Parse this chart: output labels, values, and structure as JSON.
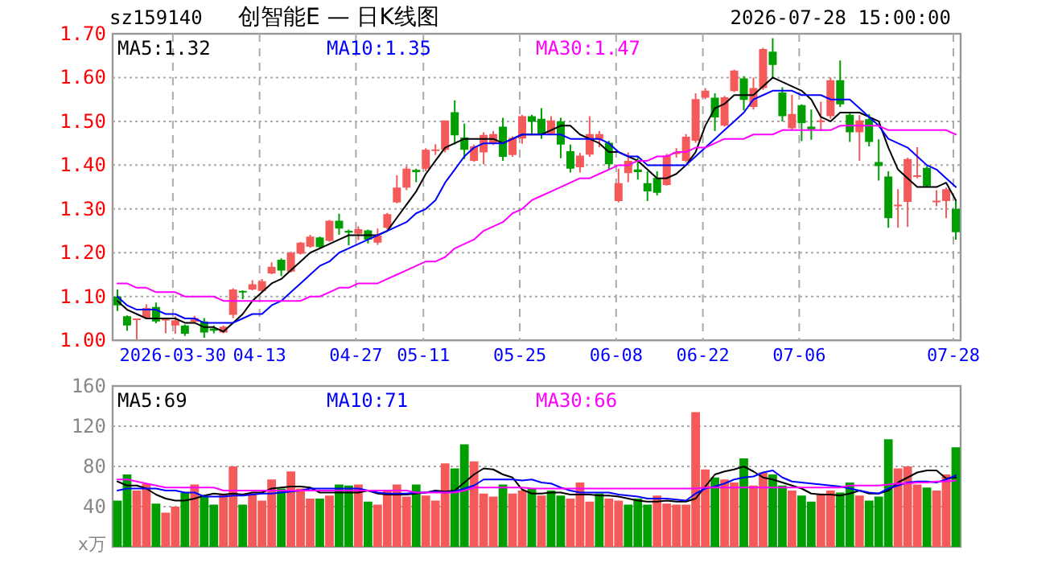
{
  "chart_data": [
    {
      "type": "candlestick",
      "title": "创智能E — 日K线图",
      "subtitle": "2026-07-28 15:00:00",
      "annotations": [
        "sz159140"
      ],
      "categories": [
        null,
        null,
        null,
        null,
        null,
        null,
        "2026-03-30",
        null,
        null,
        null,
        null,
        null,
        null,
        null,
        null,
        "04-13",
        null,
        null,
        null,
        null,
        null,
        null,
        null,
        null,
        null,
        "04-27",
        null,
        null,
        null,
        null,
        null,
        null,
        "05-11",
        null,
        null,
        null,
        null,
        null,
        null,
        null,
        null,
        null,
        "05-25",
        null,
        null,
        null,
        null,
        null,
        null,
        null,
        null,
        null,
        "06-08",
        null,
        null,
        null,
        null,
        null,
        null,
        null,
        null,
        "06-22",
        null,
        null,
        null,
        null,
        null,
        null,
        null,
        null,
        null,
        "07-06",
        null,
        null,
        null,
        null,
        null,
        null,
        null,
        null,
        null,
        null,
        null,
        null,
        null,
        null,
        null,
        "07-28"
      ],
      "ohlc": [
        [
          1.1,
          1.116,
          1.067,
          1.08
        ],
        [
          1.055,
          1.057,
          1.022,
          1.034
        ],
        [
          1.048,
          1.05,
          1.002,
          1.05
        ],
        [
          1.052,
          1.082,
          1.049,
          1.074
        ],
        [
          1.076,
          1.086,
          1.039,
          1.043
        ],
        [
          1.047,
          1.05,
          1.016,
          1.049
        ],
        [
          1.034,
          1.055,
          1.015,
          1.046
        ],
        [
          1.034,
          1.036,
          1.01,
          1.015
        ],
        [
          1.042,
          1.056,
          1.039,
          1.051
        ],
        [
          1.043,
          1.051,
          1.006,
          1.018
        ],
        [
          1.027,
          1.034,
          1.016,
          1.022
        ],
        [
          1.018,
          1.034,
          1.016,
          1.031
        ],
        [
          1.058,
          1.119,
          1.051,
          1.116
        ],
        [
          1.113,
          1.114,
          1.094,
          1.11
        ],
        [
          1.116,
          1.137,
          1.114,
          1.128
        ],
        [
          1.113,
          1.14,
          1.11,
          1.135
        ],
        [
          1.153,
          1.178,
          1.151,
          1.168
        ],
        [
          1.184,
          1.187,
          1.147,
          1.159
        ],
        [
          1.157,
          1.203,
          1.155,
          1.2
        ],
        [
          1.198,
          1.225,
          1.196,
          1.223
        ],
        [
          1.214,
          1.241,
          1.211,
          1.237
        ],
        [
          1.235,
          1.237,
          1.208,
          1.213
        ],
        [
          1.227,
          1.275,
          1.225,
          1.273
        ],
        [
          1.273,
          1.289,
          1.241,
          1.255
        ],
        [
          1.25,
          1.253,
          1.217,
          1.246
        ],
        [
          1.243,
          1.26,
          1.229,
          1.254
        ],
        [
          1.251,
          1.253,
          1.221,
          1.23
        ],
        [
          1.223,
          1.255,
          1.218,
          1.239
        ],
        [
          1.257,
          1.291,
          1.254,
          1.288
        ],
        [
          1.315,
          1.377,
          1.313,
          1.349
        ],
        [
          1.349,
          1.398,
          1.343,
          1.392
        ],
        [
          1.389,
          1.392,
          1.361,
          1.384
        ],
        [
          1.392,
          1.439,
          1.386,
          1.435
        ],
        [
          1.434,
          1.448,
          1.423,
          1.436
        ],
        [
          1.435,
          1.502,
          1.429,
          1.502
        ],
        [
          1.521,
          1.548,
          1.447,
          1.468
        ],
        [
          1.463,
          1.495,
          1.414,
          1.435
        ],
        [
          1.41,
          1.447,
          1.408,
          1.443
        ],
        [
          1.429,
          1.475,
          1.402,
          1.469
        ],
        [
          1.449,
          1.478,
          1.446,
          1.471
        ],
        [
          1.488,
          1.508,
          1.41,
          1.419
        ],
        [
          1.423,
          1.466,
          1.419,
          1.462
        ],
        [
          1.461,
          1.515,
          1.449,
          1.512
        ],
        [
          1.512,
          1.515,
          1.468,
          1.499
        ],
        [
          1.506,
          1.53,
          1.46,
          1.472
        ],
        [
          1.472,
          1.512,
          1.469,
          1.502
        ],
        [
          1.5,
          1.508,
          1.416,
          1.447
        ],
        [
          1.432,
          1.447,
          1.383,
          1.392
        ],
        [
          1.395,
          1.428,
          1.383,
          1.422
        ],
        [
          1.424,
          1.512,
          1.419,
          1.471
        ],
        [
          1.459,
          1.478,
          1.441,
          1.471
        ],
        [
          1.451,
          1.456,
          1.39,
          1.402
        ],
        [
          1.318,
          1.392,
          1.315,
          1.359
        ],
        [
          1.382,
          1.429,
          1.361,
          1.41
        ],
        [
          1.39,
          1.419,
          1.367,
          1.384
        ],
        [
          1.359,
          1.386,
          1.318,
          1.34
        ],
        [
          1.371,
          1.386,
          1.331,
          1.337
        ],
        [
          1.355,
          1.426,
          1.353,
          1.422
        ],
        [
          1.427,
          1.439,
          1.417,
          1.429
        ],
        [
          1.41,
          1.471,
          1.407,
          1.465
        ],
        [
          1.456,
          1.564,
          1.451,
          1.551
        ],
        [
          1.554,
          1.576,
          1.551,
          1.57
        ],
        [
          1.554,
          1.564,
          1.478,
          1.509
        ],
        [
          1.49,
          1.558,
          1.488,
          1.555
        ],
        [
          1.569,
          1.618,
          1.567,
          1.616
        ],
        [
          1.598,
          1.603,
          1.525,
          1.549
        ],
        [
          1.533,
          1.6,
          1.527,
          1.576
        ],
        [
          1.576,
          1.668,
          1.572,
          1.665
        ],
        [
          1.659,
          1.69,
          1.598,
          1.629
        ],
        [
          1.566,
          1.578,
          1.5,
          1.512
        ],
        [
          1.484,
          1.561,
          1.48,
          1.517
        ],
        [
          1.537,
          1.539,
          1.455,
          1.496
        ],
        [
          1.488,
          1.527,
          1.458,
          1.482
        ],
        [
          1.5,
          1.545,
          1.478,
          1.502
        ],
        [
          1.512,
          1.6,
          1.506,
          1.594
        ],
        [
          1.594,
          1.639,
          1.533,
          1.539
        ],
        [
          1.515,
          1.52,
          1.453,
          1.475
        ],
        [
          1.475,
          1.514,
          1.41,
          1.502
        ],
        [
          1.505,
          1.517,
          1.443,
          1.453
        ],
        [
          1.407,
          1.459,
          1.365,
          1.398
        ],
        [
          1.374,
          1.386,
          1.257,
          1.279
        ],
        [
          1.308,
          1.345,
          1.257,
          1.31
        ],
        [
          1.316,
          1.417,
          1.259,
          1.414
        ],
        [
          1.375,
          1.441,
          1.37,
          1.377
        ],
        [
          1.394,
          1.398,
          1.349,
          1.352
        ],
        [
          1.317,
          1.343,
          1.306,
          1.319
        ],
        [
          1.318,
          1.349,
          1.279,
          1.345
        ],
        [
          1.3,
          1.321,
          1.23,
          1.247
        ]
      ],
      "colors": [
        "#009e00",
        "#009e00",
        "#f55a5a",
        "#f55a5a",
        "#009e00",
        "#f55a5a",
        "#f55a5a",
        "#009e00",
        "#f55a5a",
        "#009e00",
        "#009e00",
        "#f55a5a",
        "#f55a5a",
        "#009e00",
        "#f55a5a",
        "#f55a5a",
        "#f55a5a",
        "#009e00",
        "#f55a5a",
        "#f55a5a",
        "#f55a5a",
        "#009e00",
        "#f55a5a",
        "#009e00",
        "#009e00",
        "#f55a5a",
        "#009e00",
        "#f55a5a",
        "#f55a5a",
        "#f55a5a",
        "#f55a5a",
        "#009e00",
        "#f55a5a",
        "#f55a5a",
        "#f55a5a",
        "#009e00",
        "#009e00",
        "#f55a5a",
        "#f55a5a",
        "#f55a5a",
        "#009e00",
        "#f55a5a",
        "#f55a5a",
        "#009e00",
        "#009e00",
        "#f55a5a",
        "#009e00",
        "#009e00",
        "#f55a5a",
        "#f55a5a",
        "#f55a5a",
        "#009e00",
        "#f55a5a",
        "#f55a5a",
        "#009e00",
        "#009e00",
        "#009e00",
        "#f55a5a",
        "#f55a5a",
        "#f55a5a",
        "#f55a5a",
        "#f55a5a",
        "#009e00",
        "#f55a5a",
        "#f55a5a",
        "#009e00",
        "#f55a5a",
        "#f55a5a",
        "#009e00",
        "#009e00",
        "#f55a5a",
        "#009e00",
        "#009e00",
        "#f55a5a",
        "#f55a5a",
        "#009e00",
        "#009e00",
        "#f55a5a",
        "#009e00",
        "#009e00",
        "#009e00",
        "#f55a5a",
        "#f55a5a",
        "#f55a5a",
        "#009e00",
        "#f55a5a",
        "#f55a5a",
        "#009e00"
      ],
      "series": [
        {
          "name": "MA5:1.32",
          "type": "line",
          "color": "#000000",
          "values": [
            1.09,
            1.07,
            1.06,
            1.05,
            1.05,
            1.05,
            1.05,
            1.04,
            1.04,
            1.03,
            1.03,
            1.02,
            1.04,
            1.06,
            1.09,
            1.11,
            1.13,
            1.14,
            1.16,
            1.18,
            1.2,
            1.21,
            1.22,
            1.23,
            1.24,
            1.24,
            1.24,
            1.24,
            1.25,
            1.28,
            1.31,
            1.34,
            1.38,
            1.41,
            1.44,
            1.45,
            1.46,
            1.46,
            1.46,
            1.46,
            1.45,
            1.46,
            1.47,
            1.47,
            1.47,
            1.48,
            1.49,
            1.49,
            1.47,
            1.46,
            1.45,
            1.43,
            1.43,
            1.42,
            1.41,
            1.39,
            1.37,
            1.37,
            1.38,
            1.4,
            1.43,
            1.49,
            1.53,
            1.54,
            1.56,
            1.56,
            1.56,
            1.58,
            1.6,
            1.59,
            1.58,
            1.57,
            1.55,
            1.51,
            1.5,
            1.52,
            1.52,
            1.52,
            1.51,
            1.5,
            1.44,
            1.39,
            1.37,
            1.35,
            1.35,
            1.35,
            1.36,
            1.32
          ]
        },
        {
          "name": "MA10:1.35",
          "type": "line",
          "color": "#0000ff",
          "values": [
            1.1,
            1.08,
            1.07,
            1.07,
            1.07,
            1.06,
            1.06,
            1.05,
            1.05,
            1.04,
            1.04,
            1.04,
            1.04,
            1.05,
            1.06,
            1.06,
            1.08,
            1.09,
            1.11,
            1.13,
            1.15,
            1.17,
            1.18,
            1.2,
            1.21,
            1.22,
            1.23,
            1.24,
            1.25,
            1.26,
            1.27,
            1.29,
            1.3,
            1.32,
            1.36,
            1.39,
            1.42,
            1.44,
            1.45,
            1.45,
            1.45,
            1.46,
            1.47,
            1.47,
            1.47,
            1.47,
            1.47,
            1.46,
            1.46,
            1.46,
            1.46,
            1.45,
            1.43,
            1.42,
            1.42,
            1.4,
            1.4,
            1.4,
            1.4,
            1.4,
            1.42,
            1.44,
            1.46,
            1.48,
            1.5,
            1.52,
            1.55,
            1.56,
            1.57,
            1.57,
            1.57,
            1.56,
            1.56,
            1.56,
            1.55,
            1.55,
            1.55,
            1.53,
            1.51,
            1.49,
            1.46,
            1.45,
            1.44,
            1.42,
            1.4,
            1.39,
            1.37,
            1.35
          ]
        },
        {
          "name": "MA30:1.47",
          "type": "line",
          "color": "#ff00ff",
          "values": [
            1.13,
            1.13,
            1.12,
            1.12,
            1.11,
            1.11,
            1.11,
            1.1,
            1.1,
            1.1,
            1.1,
            1.09,
            1.09,
            1.09,
            1.09,
            1.09,
            1.09,
            1.09,
            1.09,
            1.09,
            1.1,
            1.1,
            1.11,
            1.12,
            1.12,
            1.13,
            1.13,
            1.13,
            1.14,
            1.15,
            1.16,
            1.17,
            1.18,
            1.18,
            1.19,
            1.21,
            1.22,
            1.23,
            1.25,
            1.26,
            1.27,
            1.29,
            1.3,
            1.32,
            1.33,
            1.34,
            1.35,
            1.36,
            1.37,
            1.37,
            1.38,
            1.39,
            1.4,
            1.4,
            1.41,
            1.41,
            1.42,
            1.42,
            1.43,
            1.43,
            1.44,
            1.44,
            1.45,
            1.46,
            1.46,
            1.46,
            1.47,
            1.47,
            1.47,
            1.48,
            1.48,
            1.48,
            1.48,
            1.48,
            1.48,
            1.49,
            1.49,
            1.49,
            1.49,
            1.49,
            1.48,
            1.48,
            1.48,
            1.48,
            1.48,
            1.48,
            1.48,
            1.47
          ]
        }
      ],
      "ylim": [
        1.0,
        1.7
      ],
      "yticks": [
        {
          "value": 1.0,
          "label": "1.00"
        },
        {
          "value": 1.1,
          "label": "1.10"
        },
        {
          "value": 1.2,
          "label": "1.20"
        },
        {
          "value": 1.3,
          "label": "1.30"
        },
        {
          "value": 1.4,
          "label": "1.40"
        },
        {
          "value": 1.5,
          "label": "1.50"
        },
        {
          "value": 1.6,
          "label": "1.60"
        },
        {
          "value": 1.7,
          "label": "1.70"
        }
      ],
      "grid": true,
      "legend": "top left"
    },
    {
      "type": "bar",
      "ylabel": "x万",
      "tick_labels": "y",
      "categories": [
        null,
        null,
        null,
        null,
        null,
        null,
        null,
        null,
        null,
        null,
        null,
        null,
        null,
        null,
        null,
        null,
        null,
        null,
        null,
        null,
        null,
        null,
        null,
        null,
        null,
        null,
        null,
        null,
        null,
        null,
        null,
        null,
        null,
        null,
        null,
        null,
        null,
        null,
        null,
        null,
        null,
        null,
        null,
        null,
        null,
        null,
        null,
        null,
        null,
        null,
        null,
        null,
        null,
        null,
        null,
        null,
        null,
        null,
        null,
        null,
        null,
        null,
        null,
        null,
        null,
        null,
        null,
        null,
        null,
        null,
        null,
        null,
        null,
        null,
        null,
        null,
        null,
        null,
        null,
        null,
        null,
        null,
        null,
        null,
        null,
        null,
        null,
        null
      ],
      "series": [
        {
          "type": "bar",
          "values": [
            46,
            72,
            56,
            63,
            43,
            34,
            40,
            54,
            62,
            51,
            42,
            53,
            80,
            42,
            53,
            46,
            67,
            58,
            75,
            58,
            48,
            48,
            51,
            62,
            61,
            62,
            45,
            42,
            56,
            62,
            50,
            62,
            51,
            46,
            83,
            78,
            102,
            85,
            53,
            50,
            62,
            53,
            56,
            58,
            51,
            56,
            51,
            48,
            64,
            45,
            53,
            48,
            46,
            42,
            48,
            42,
            51,
            43,
            42,
            42,
            134,
            77,
            69,
            67,
            64,
            88,
            61,
            74,
            72,
            61,
            56,
            51,
            45,
            53,
            56,
            54,
            64,
            51,
            46,
            50,
            107,
            78,
            80,
            62,
            59,
            56,
            72,
            99
          ],
          "colors": [
            "#009e00",
            "#009e00",
            "#f55a5a",
            "#f55a5a",
            "#009e00",
            "#f55a5a",
            "#f55a5a",
            "#009e00",
            "#f55a5a",
            "#009e00",
            "#009e00",
            "#f55a5a",
            "#f55a5a",
            "#009e00",
            "#f55a5a",
            "#f55a5a",
            "#f55a5a",
            "#009e00",
            "#f55a5a",
            "#f55a5a",
            "#f55a5a",
            "#009e00",
            "#f55a5a",
            "#009e00",
            "#009e00",
            "#f55a5a",
            "#009e00",
            "#f55a5a",
            "#f55a5a",
            "#f55a5a",
            "#f55a5a",
            "#009e00",
            "#f55a5a",
            "#f55a5a",
            "#f55a5a",
            "#009e00",
            "#009e00",
            "#f55a5a",
            "#f55a5a",
            "#f55a5a",
            "#009e00",
            "#f55a5a",
            "#f55a5a",
            "#009e00",
            "#f55a5a",
            "#009e00",
            "#009e00",
            "#f55a5a",
            "#f55a5a",
            "#f55a5a",
            "#009e00",
            "#f55a5a",
            "#f55a5a",
            "#009e00",
            "#009e00",
            "#009e00",
            "#f55a5a",
            "#f55a5a",
            "#f55a5a",
            "#f55a5a",
            "#f55a5a",
            "#f55a5a",
            "#009e00",
            "#f55a5a",
            "#f55a5a",
            "#009e00",
            "#f55a5a",
            "#f55a5a",
            "#009e00",
            "#009e00",
            "#f55a5a",
            "#009e00",
            "#009e00",
            "#f55a5a",
            "#f55a5a",
            "#009e00",
            "#009e00",
            "#f55a5a",
            "#009e00",
            "#009e00",
            "#009e00",
            "#f55a5a",
            "#f55a5a",
            "#f55a5a",
            "#009e00",
            "#f55a5a",
            "#f55a5a",
            "#009e00"
          ]
        },
        {
          "name": "MA5:69",
          "type": "line",
          "color": "#000000",
          "values": [
            65,
            61,
            61,
            58,
            52,
            48,
            46,
            46,
            48,
            51,
            53,
            52,
            53,
            52,
            54,
            54,
            58,
            59,
            60,
            60,
            59,
            54,
            54,
            54,
            54,
            54,
            56,
            53,
            52,
            52,
            52,
            53,
            54,
            56,
            55,
            56,
            64,
            72,
            78,
            77,
            72,
            69,
            57,
            53,
            53,
            54,
            54,
            52,
            52,
            52,
            51,
            51,
            50,
            48,
            46,
            45,
            45,
            46,
            45,
            45,
            48,
            60,
            72,
            75,
            77,
            80,
            75,
            69,
            67,
            64,
            61,
            58,
            53,
            52,
            52,
            51,
            53,
            56,
            53,
            53,
            56,
            64,
            69,
            74,
            76,
            76,
            68,
            69
          ]
        },
        {
          "name": "MA10:71",
          "type": "line",
          "color": "#0000ff",
          "values": [
            56,
            58,
            58,
            58,
            58,
            56,
            56,
            54,
            54,
            50,
            50,
            50,
            51,
            51,
            52,
            53,
            53,
            54,
            55,
            56,
            58,
            58,
            58,
            58,
            58,
            58,
            56,
            54,
            53,
            53,
            53,
            54,
            54,
            55,
            54,
            55,
            58,
            61,
            67,
            67,
            67,
            67,
            66,
            67,
            64,
            63,
            59,
            56,
            54,
            54,
            54,
            54,
            52,
            51,
            50,
            48,
            48,
            48,
            47,
            46,
            53,
            58,
            60,
            63,
            67,
            69,
            70,
            74,
            76,
            69,
            65,
            64,
            63,
            62,
            61,
            60,
            58,
            56,
            54,
            53,
            58,
            61,
            64,
            65,
            65,
            64,
            67,
            71
          ]
        },
        {
          "name": "MA30:66",
          "type": "line",
          "color": "#ff00ff",
          "values": [
            67,
            67,
            65,
            63,
            61,
            59,
            59,
            59,
            59,
            59,
            59,
            56,
            56,
            56,
            56,
            56,
            56,
            56,
            56,
            56,
            56,
            56,
            56,
            56,
            56,
            56,
            56,
            56,
            56,
            56,
            56,
            54,
            54,
            54,
            54,
            54,
            56,
            59,
            59,
            59,
            59,
            59,
            59,
            58,
            58,
            58,
            58,
            58,
            58,
            58,
            58,
            58,
            58,
            58,
            58,
            58,
            58,
            58,
            58,
            58,
            58,
            59,
            59,
            59,
            59,
            59,
            59,
            59,
            59,
            59,
            59,
            59,
            59,
            59,
            59,
            59,
            61,
            61,
            61,
            61,
            62,
            63,
            63,
            64,
            64,
            65,
            65,
            66
          ]
        }
      ],
      "ylim": [
        0,
        160
      ],
      "yticks": [
        40,
        80,
        120,
        160
      ],
      "grid": "y",
      "legend": "top left"
    }
  ]
}
